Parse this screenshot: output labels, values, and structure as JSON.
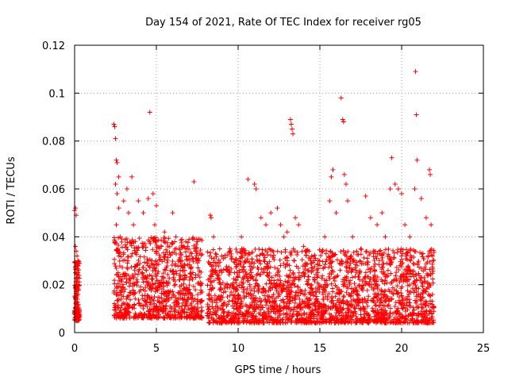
{
  "chart_data": {
    "type": "scatter",
    "title": "Day 154 of 2021, Rate Of TEC Index for receiver rg05",
    "xlabel": "GPS time / hours",
    "ylabel": "ROTI / TECUs",
    "xlim": [
      0,
      25
    ],
    "ylim": [
      0,
      0.12
    ],
    "x_ticks": [
      "0",
      "5",
      "10",
      "15",
      "20",
      "25"
    ],
    "y_ticks": [
      "0",
      "0.02",
      "0.04",
      "0.06",
      "0.08",
      "0.1",
      "0.12"
    ],
    "grid": true,
    "marker": "+",
    "color": "#ff0000",
    "series": [
      {
        "points": [
          [
            0.0,
            0.051
          ],
          [
            0.05,
            0.052
          ],
          [
            0.1,
            0.049
          ],
          [
            0.05,
            0.036
          ],
          [
            0.1,
            0.034
          ],
          [
            0.15,
            0.032
          ],
          [
            0.2,
            0.03
          ],
          [
            0.25,
            0.029
          ],
          [
            0.05,
            0.025
          ],
          [
            0.1,
            0.02
          ],
          [
            0.15,
            0.018
          ],
          [
            0.2,
            0.016
          ],
          [
            0.05,
            0.014
          ],
          [
            0.1,
            0.012
          ],
          [
            0.15,
            0.01
          ],
          [
            0.2,
            0.008
          ],
          [
            0.25,
            0.006
          ],
          [
            0.1,
            0.005
          ],
          [
            2.4,
            0.087
          ],
          [
            2.45,
            0.086
          ],
          [
            2.5,
            0.081
          ],
          [
            2.55,
            0.072
          ],
          [
            2.6,
            0.071
          ],
          [
            2.7,
            0.065
          ],
          [
            2.5,
            0.062
          ],
          [
            2.6,
            0.058
          ],
          [
            2.7,
            0.052
          ],
          [
            2.55,
            0.045
          ],
          [
            2.8,
            0.04
          ],
          [
            3.0,
            0.055
          ],
          [
            3.2,
            0.06
          ],
          [
            3.5,
            0.065
          ],
          [
            3.3,
            0.05
          ],
          [
            3.6,
            0.045
          ],
          [
            3.9,
            0.055
          ],
          [
            4.2,
            0.05
          ],
          [
            4.5,
            0.056
          ],
          [
            4.6,
            0.092
          ],
          [
            4.8,
            0.058
          ],
          [
            5.0,
            0.053
          ],
          [
            4.9,
            0.045
          ],
          [
            5.5,
            0.042
          ],
          [
            6.0,
            0.05
          ],
          [
            6.2,
            0.04
          ],
          [
            6.8,
            0.038
          ],
          [
            7.0,
            0.032
          ],
          [
            7.3,
            0.063
          ],
          [
            7.5,
            0.038
          ],
          [
            7.6,
            0.03
          ],
          [
            8.3,
            0.049
          ],
          [
            8.35,
            0.048
          ],
          [
            8.5,
            0.04
          ],
          [
            9.0,
            0.032
          ],
          [
            9.5,
            0.035
          ],
          [
            10.0,
            0.03
          ],
          [
            10.2,
            0.04
          ],
          [
            10.6,
            0.064
          ],
          [
            11.0,
            0.062
          ],
          [
            11.1,
            0.06
          ],
          [
            11.4,
            0.048
          ],
          [
            11.7,
            0.045
          ],
          [
            12.0,
            0.05
          ],
          [
            12.4,
            0.052
          ],
          [
            12.6,
            0.045
          ],
          [
            12.8,
            0.04
          ],
          [
            13.0,
            0.042
          ],
          [
            13.2,
            0.089
          ],
          [
            13.25,
            0.087
          ],
          [
            13.3,
            0.085
          ],
          [
            13.35,
            0.083
          ],
          [
            13.5,
            0.048
          ],
          [
            13.7,
            0.045
          ],
          [
            14.0,
            0.036
          ],
          [
            14.5,
            0.032
          ],
          [
            15.0,
            0.028
          ],
          [
            15.3,
            0.04
          ],
          [
            15.6,
            0.055
          ],
          [
            15.7,
            0.065
          ],
          [
            15.8,
            0.068
          ],
          [
            16.0,
            0.05
          ],
          [
            16.3,
            0.098
          ],
          [
            16.4,
            0.089
          ],
          [
            16.45,
            0.088
          ],
          [
            16.5,
            0.066
          ],
          [
            16.6,
            0.062
          ],
          [
            16.7,
            0.055
          ],
          [
            17.0,
            0.04
          ],
          [
            17.5,
            0.035
          ],
          [
            17.8,
            0.057
          ],
          [
            18.1,
            0.048
          ],
          [
            18.5,
            0.045
          ],
          [
            18.8,
            0.05
          ],
          [
            19.0,
            0.04
          ],
          [
            19.3,
            0.06
          ],
          [
            19.4,
            0.073
          ],
          [
            19.6,
            0.062
          ],
          [
            19.8,
            0.06
          ],
          [
            20.0,
            0.058
          ],
          [
            20.2,
            0.045
          ],
          [
            20.5,
            0.04
          ],
          [
            20.8,
            0.06
          ],
          [
            20.85,
            0.109
          ],
          [
            20.9,
            0.091
          ],
          [
            20.95,
            0.072
          ],
          [
            21.2,
            0.056
          ],
          [
            21.5,
            0.048
          ],
          [
            21.7,
            0.068
          ],
          [
            21.75,
            0.066
          ],
          [
            21.8,
            0.045
          ],
          [
            21.9,
            0.03
          ]
        ],
        "dense_band": [
          {
            "x_range": [
              0.0,
              0.3
            ],
            "y_range": [
              0.005,
              0.03
            ],
            "count": 120
          },
          {
            "x_range": [
              2.4,
              7.8
            ],
            "y_range": [
              0.006,
              0.04
            ],
            "count": 900
          },
          {
            "x_range": [
              8.1,
              22.0
            ],
            "y_range": [
              0.004,
              0.035
            ],
            "count": 2200
          }
        ]
      }
    ]
  }
}
